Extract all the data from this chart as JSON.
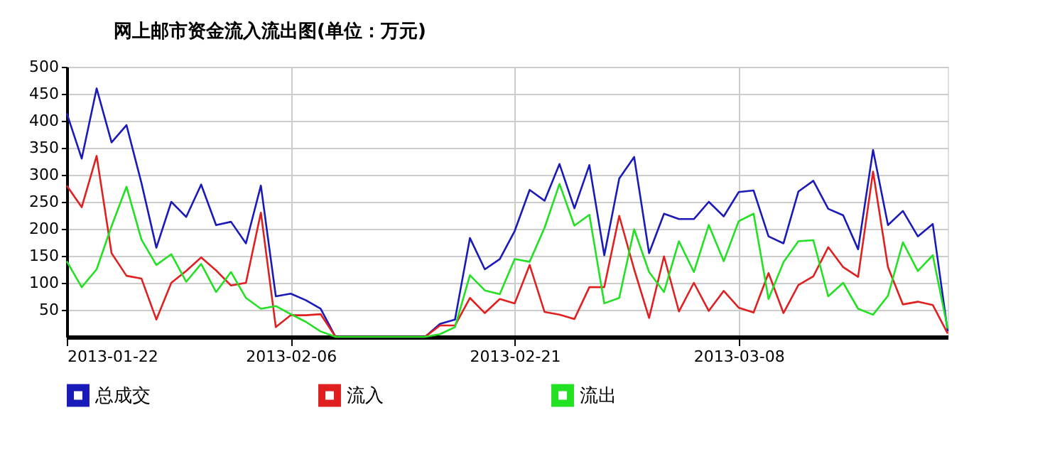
{
  "chart_data": {
    "type": "line",
    "title": "网上邮市资金流入流出图(单位：万元)",
    "x": [
      "2013-01-22",
      "2013-01-23",
      "2013-01-24",
      "2013-01-25",
      "2013-01-26",
      "2013-01-27",
      "2013-01-28",
      "2013-01-29",
      "2013-01-30",
      "2013-01-31",
      "2013-02-01",
      "2013-02-02",
      "2013-02-03",
      "2013-02-04",
      "2013-02-05",
      "2013-02-06",
      "2013-02-07",
      "2013-02-08",
      "2013-02-09",
      "2013-02-10",
      "2013-02-11",
      "2013-02-12",
      "2013-02-13",
      "2013-02-14",
      "2013-02-15",
      "2013-02-16",
      "2013-02-17",
      "2013-02-18",
      "2013-02-19",
      "2013-02-20",
      "2013-02-21",
      "2013-02-22",
      "2013-02-23",
      "2013-02-24",
      "2013-02-25",
      "2013-02-26",
      "2013-02-27",
      "2013-02-28",
      "2013-03-01",
      "2013-03-02",
      "2013-03-03",
      "2013-03-04",
      "2013-03-05",
      "2013-03-06",
      "2013-03-07",
      "2013-03-08",
      "2013-03-09",
      "2013-03-10",
      "2013-03-11",
      "2013-03-12",
      "2013-03-13",
      "2013-03-14",
      "2013-03-15",
      "2013-03-16",
      "2013-03-17",
      "2013-03-18",
      "2013-03-19",
      "2013-03-20",
      "2013-03-21",
      "2013-03-22"
    ],
    "series": [
      {
        "name": "总成交",
        "color": "#1a1ab8",
        "values": [
          414,
          330,
          460,
          360,
          392,
          285,
          165,
          250,
          222,
          282,
          207,
          213,
          173,
          280,
          75,
          80,
          68,
          52,
          0,
          0,
          0,
          0,
          0,
          0,
          0,
          24,
          32,
          183,
          125,
          144,
          196,
          272,
          252,
          320,
          238,
          318,
          151,
          293,
          333,
          155,
          228,
          218,
          218,
          250,
          223,
          268,
          271,
          186,
          173,
          269,
          289,
          237,
          225,
          162,
          346,
          207,
          233,
          186,
          209,
          10
        ]
      },
      {
        "name": "流入",
        "color": "#e02020",
        "values": [
          280,
          240,
          335,
          155,
          113,
          108,
          32,
          100,
          122,
          147,
          123,
          95,
          100,
          230,
          18,
          40,
          40,
          42,
          0,
          0,
          0,
          0,
          0,
          0,
          0,
          21,
          21,
          72,
          44,
          70,
          62,
          133,
          46,
          41,
          33,
          92,
          92,
          224,
          125,
          35,
          149,
          47,
          100,
          48,
          85,
          54,
          45,
          118,
          44,
          96,
          112,
          166,
          129,
          111,
          306,
          129,
          60,
          65,
          59,
          6
        ]
      },
      {
        "name": "流出",
        "color": "#22e022",
        "values": [
          140,
          92,
          125,
          205,
          278,
          180,
          133,
          153,
          102,
          135,
          83,
          120,
          72,
          52,
          57,
          42,
          28,
          10,
          0,
          0,
          0,
          0,
          0,
          0,
          0,
          5,
          18,
          114,
          86,
          79,
          144,
          139,
          202,
          283,
          206,
          226,
          62,
          72,
          199,
          120,
          83,
          177,
          120,
          207,
          140,
          214,
          228,
          70,
          138,
          177,
          179,
          75,
          100,
          52,
          41,
          76,
          175,
          122,
          151,
          15
        ]
      }
    ],
    "xlim": [
      "2013-01-22",
      "2013-03-22"
    ],
    "xticks": [
      "2013-01-22",
      "2013-02-06",
      "2013-02-21",
      "2013-03-08"
    ],
    "ylim": [
      0,
      500
    ],
    "yticks": [
      50,
      100,
      150,
      200,
      250,
      300,
      350,
      400,
      450,
      500
    ],
    "grid": true,
    "legend": "bottom",
    "marker": "none",
    "line_style": "solid"
  }
}
